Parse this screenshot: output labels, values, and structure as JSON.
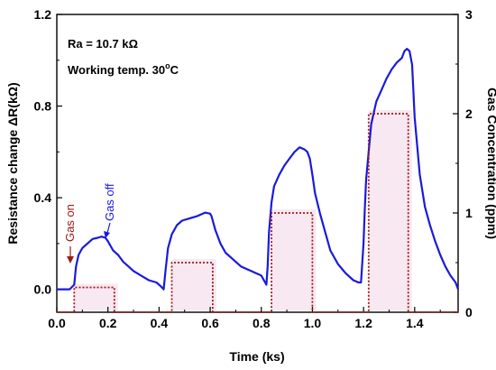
{
  "chart_data": {
    "type": "line",
    "x_label": "Time (ks)",
    "y_left_label": "Resistance change  ΔR(kΩ)",
    "y_right_label": "Gas Concentration (ppm)",
    "x_range": [
      0,
      1.57
    ],
    "y_left_range": [
      -0.1,
      1.2
    ],
    "y_right_range": [
      0,
      3
    ],
    "x_ticks": [
      "0.0",
      "0.2",
      "0.4",
      "0.6",
      "0.8",
      "1.0",
      "1.2",
      "1.4"
    ],
    "x_tick_values": [
      0,
      0.2,
      0.4,
      0.6,
      0.8,
      1.0,
      1.2,
      1.4
    ],
    "y_left_ticks": [
      "0.0",
      "0.4",
      "0.8",
      "1.2"
    ],
    "y_left_tick_values": [
      0,
      0.4,
      0.8,
      1.2
    ],
    "y_right_ticks": [
      "0",
      "1",
      "2",
      "3"
    ],
    "y_right_tick_values": [
      0,
      1,
      2,
      3
    ],
    "annotations": {
      "ra": "Ra = 10.7 kΩ",
      "working_temp": "Working temp. 30",
      "working_temp_unit": "C",
      "working_temp_sup": "o",
      "gas_on": "Gas on",
      "gas_off": "Gas off"
    },
    "series": [
      {
        "color": "#1a1adc",
        "axis": "left",
        "x": [
          0,
          0.05,
          0.068,
          0.075,
          0.085,
          0.1,
          0.12,
          0.14,
          0.16,
          0.175,
          0.19,
          0.2,
          0.21,
          0.22,
          0.24,
          0.26,
          0.28,
          0.3,
          0.33,
          0.36,
          0.39,
          0.41,
          0.418,
          0.425,
          0.435,
          0.45,
          0.47,
          0.49,
          0.52,
          0.55,
          0.58,
          0.6,
          0.605,
          0.62,
          0.64,
          0.66,
          0.69,
          0.72,
          0.76,
          0.8,
          0.81,
          0.82,
          0.825,
          0.83,
          0.84,
          0.85,
          0.87,
          0.89,
          0.91,
          0.93,
          0.95,
          0.97,
          0.98,
          0.99,
          1.0,
          1.01,
          1.03,
          1.05,
          1.07,
          1.1,
          1.13,
          1.16,
          1.18,
          1.19,
          1.2,
          1.205,
          1.21,
          1.22,
          1.23,
          1.25,
          1.27,
          1.29,
          1.31,
          1.33,
          1.35,
          1.36,
          1.37,
          1.38,
          1.39,
          1.4,
          1.42,
          1.44,
          1.46,
          1.48,
          1.5,
          1.52,
          1.54,
          1.56,
          1.57
        ],
        "y": [
          0.0,
          0.0,
          0.02,
          0.1,
          0.15,
          0.18,
          0.2,
          0.22,
          0.225,
          0.23,
          0.225,
          0.21,
          0.19,
          0.17,
          0.15,
          0.12,
          0.1,
          0.08,
          0.06,
          0.04,
          0.03,
          0.01,
          0.0,
          0.08,
          0.18,
          0.24,
          0.28,
          0.3,
          0.31,
          0.32,
          0.335,
          0.33,
          0.32,
          0.26,
          0.2,
          0.16,
          0.13,
          0.1,
          0.08,
          0.06,
          0.04,
          0.02,
          0.1,
          0.25,
          0.38,
          0.45,
          0.5,
          0.54,
          0.57,
          0.6,
          0.62,
          0.61,
          0.6,
          0.57,
          0.5,
          0.42,
          0.33,
          0.25,
          0.17,
          0.11,
          0.07,
          0.04,
          0.03,
          0.03,
          0.2,
          0.35,
          0.48,
          0.6,
          0.72,
          0.82,
          0.87,
          0.92,
          0.96,
          0.99,
          1.01,
          1.04,
          1.05,
          1.04,
          0.98,
          0.75,
          0.5,
          0.36,
          0.28,
          0.21,
          0.15,
          0.1,
          0.06,
          0.03,
          0.0
        ]
      },
      {
        "color": "#a01818",
        "axis": "right",
        "x": [
          0,
          0.068,
          0.068,
          0.225,
          0.225,
          0.45,
          0.45,
          0.61,
          0.61,
          0.84,
          0.84,
          1.0,
          1.0,
          1.22,
          1.22,
          1.375,
          1.375,
          1.57
        ],
        "y": [
          0,
          0,
          0.25,
          0.25,
          0,
          0,
          0.5,
          0.5,
          0,
          0,
          1,
          1,
          0,
          0,
          2,
          2,
          0,
          0
        ]
      }
    ]
  }
}
